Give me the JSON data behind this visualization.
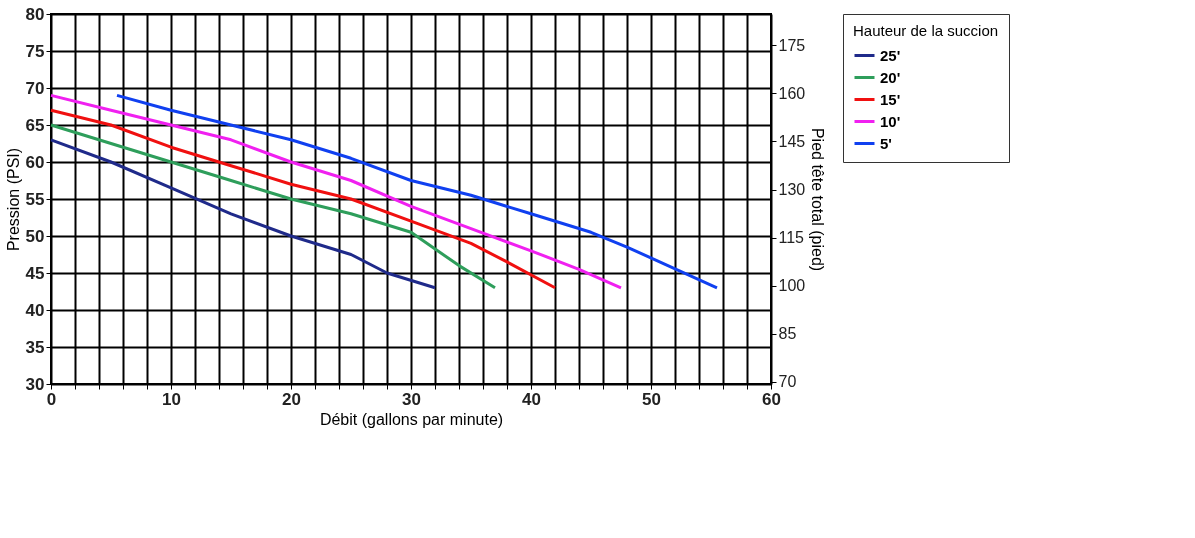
{
  "chart_data": {
    "type": "line",
    "xlabel": "Débit (gallons par minute)",
    "ylabel": "Pression (PSI)",
    "y2label": "Pied tête total (pied)",
    "legend_title": "Hauteur de la succion",
    "series": [
      {
        "name": "25'",
        "color": "#1f2a8a",
        "x": [
          0,
          5,
          10,
          15,
          20,
          25,
          28,
          32
        ],
        "values": [
          63,
          60,
          56.5,
          53,
          50,
          47.5,
          45,
          43
        ]
      },
      {
        "name": "20'",
        "color": "#2e9e5b",
        "x": [
          0,
          5,
          10,
          15,
          20,
          25,
          30,
          34,
          37
        ],
        "values": [
          65,
          62.5,
          60,
          57.5,
          55,
          53,
          50.5,
          46,
          43
        ]
      },
      {
        "name": "15'",
        "color": "#f01010",
        "x": [
          0,
          5,
          10,
          15,
          20,
          25,
          30,
          35,
          38,
          42
        ],
        "values": [
          67,
          65,
          62,
          59.5,
          57,
          55,
          52,
          49,
          46.5,
          43
        ]
      },
      {
        "name": "10'",
        "color": "#f020f0",
        "x": [
          0,
          5,
          10,
          15,
          20,
          25,
          30,
          35,
          40,
          44,
          47.5
        ],
        "values": [
          69,
          67,
          65,
          63,
          60,
          57.5,
          54,
          51,
          48,
          45.5,
          43
        ]
      },
      {
        "name": "5'",
        "color": "#1040f0",
        "x": [
          5.5,
          10,
          15,
          20,
          25,
          30,
          35,
          40,
          45,
          48,
          55.5
        ],
        "values": [
          69,
          67,
          65,
          63,
          60.5,
          57.5,
          55.5,
          53,
          50.5,
          48.5,
          43
        ]
      }
    ],
    "xlim": [
      0,
      60
    ],
    "xticks": [
      0,
      {
        "value": 2,
        "label": null
      },
      {
        "value": 4,
        "label": null
      },
      {
        "value": 6,
        "label": null
      },
      {
        "value": 8,
        "label": null
      },
      10,
      {
        "value": 12,
        "label": null
      },
      {
        "value": 14,
        "label": null
      },
      {
        "value": 16,
        "label": null
      },
      {
        "value": 18,
        "label": null
      },
      20,
      {
        "value": 22,
        "label": null
      },
      {
        "value": 24,
        "label": null
      },
      {
        "value": 26,
        "label": null
      },
      {
        "value": 28,
        "label": null
      },
      30,
      {
        "value": 32,
        "label": null
      },
      {
        "value": 34,
        "label": null
      },
      {
        "value": 36,
        "label": null
      },
      {
        "value": 38,
        "label": null
      },
      40,
      {
        "value": 42,
        "label": null
      },
      {
        "value": 44,
        "label": null
      },
      {
        "value": 46,
        "label": null
      },
      {
        "value": 48,
        "label": null
      },
      50,
      {
        "value": 52,
        "label": null
      },
      {
        "value": 54,
        "label": null
      },
      {
        "value": 56,
        "label": null
      },
      {
        "value": 58,
        "label": null
      },
      60
    ],
    "ylim": [
      30,
      80
    ],
    "yticks": [
      30,
      35,
      40,
      45,
      50,
      55,
      60,
      65,
      70,
      75,
      80
    ],
    "y2lim": [
      69.3,
      184.8
    ],
    "y2ticks": [
      70,
      85,
      100,
      115,
      130,
      145,
      160,
      175
    ],
    "grid": true,
    "legend": "right",
    "line_style": "solid",
    "marker": "none"
  }
}
